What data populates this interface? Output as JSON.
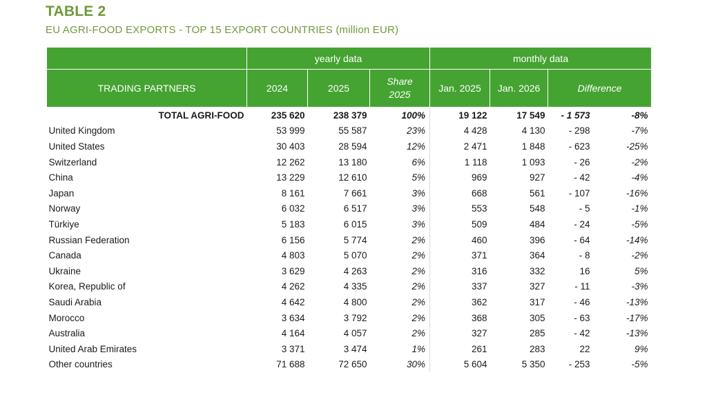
{
  "title": "TABLE 2",
  "subtitle": "EU AGRI-FOOD EXPORTS - TOP 15 EXPORT COUNTRIES (million EUR)",
  "headers": {
    "yearly": "yearly data",
    "monthly": "monthly data",
    "partners": "TRADING PARTNERS",
    "y2024": "2024",
    "y2025": "2025",
    "share_line1": "Share",
    "share_line2": "2025",
    "jan2025": "Jan. 2025",
    "jan2026": "Jan. 2026",
    "difference": "Difference"
  },
  "colors": {
    "header_green": "#45a331",
    "title_green": "#6f9a3a"
  },
  "rows": [
    {
      "name": "TOTAL AGRI-FOOD",
      "y2024": "235 620",
      "y2025": "238 379",
      "share": "100%",
      "jan2025": "19 122",
      "jan2026": "17 549",
      "diff": "- 1 573",
      "pct": "-8%"
    },
    {
      "name": "United Kingdom",
      "y2024": "53 999",
      "y2025": "55 587",
      "share": "23%",
      "jan2025": "4 428",
      "jan2026": "4 130",
      "diff": "- 298",
      "pct": "-7%"
    },
    {
      "name": "United States",
      "y2024": "30 403",
      "y2025": "28 594",
      "share": "12%",
      "jan2025": "2 471",
      "jan2026": "1 848",
      "diff": "- 623",
      "pct": "-25%"
    },
    {
      "name": "Switzerland",
      "y2024": "12 262",
      "y2025": "13 180",
      "share": "6%",
      "jan2025": "1 118",
      "jan2026": "1 093",
      "diff": "- 26",
      "pct": "-2%"
    },
    {
      "name": "China",
      "y2024": "13 229",
      "y2025": "12 610",
      "share": "5%",
      "jan2025": "969",
      "jan2026": "927",
      "diff": "- 42",
      "pct": "-4%"
    },
    {
      "name": "Japan",
      "y2024": "8 161",
      "y2025": "7 661",
      "share": "3%",
      "jan2025": "668",
      "jan2026": "561",
      "diff": "- 107",
      "pct": "-16%"
    },
    {
      "name": "Norway",
      "y2024": "6 032",
      "y2025": "6 517",
      "share": "3%",
      "jan2025": "553",
      "jan2026": "548",
      "diff": "- 5",
      "pct": "-1%"
    },
    {
      "name": "Türkiye",
      "y2024": "5 183",
      "y2025": "6 015",
      "share": "3%",
      "jan2025": "509",
      "jan2026": "484",
      "diff": "- 24",
      "pct": "-5%"
    },
    {
      "name": "Russian Federation",
      "y2024": "6 156",
      "y2025": "5 774",
      "share": "2%",
      "jan2025": "460",
      "jan2026": "396",
      "diff": "- 64",
      "pct": "-14%"
    },
    {
      "name": "Canada",
      "y2024": "4 803",
      "y2025": "5 070",
      "share": "2%",
      "jan2025": "371",
      "jan2026": "364",
      "diff": "- 8",
      "pct": "-2%"
    },
    {
      "name": "Ukraine",
      "y2024": "3 629",
      "y2025": "4 263",
      "share": "2%",
      "jan2025": "316",
      "jan2026": "332",
      "diff": "16",
      "pct": "5%"
    },
    {
      "name": "Korea, Republic of",
      "y2024": "4 262",
      "y2025": "4 335",
      "share": "2%",
      "jan2025": "337",
      "jan2026": "327",
      "diff": "- 11",
      "pct": "-3%"
    },
    {
      "name": "Saudi Arabia",
      "y2024": "4 642",
      "y2025": "4 800",
      "share": "2%",
      "jan2025": "362",
      "jan2026": "317",
      "diff": "- 46",
      "pct": "-13%"
    },
    {
      "name": "Morocco",
      "y2024": "3 634",
      "y2025": "3 792",
      "share": "2%",
      "jan2025": "368",
      "jan2026": "305",
      "diff": "- 63",
      "pct": "-17%"
    },
    {
      "name": "Australia",
      "y2024": "4 164",
      "y2025": "4 057",
      "share": "2%",
      "jan2025": "327",
      "jan2026": "285",
      "diff": "- 42",
      "pct": "-13%"
    },
    {
      "name": "United Arab Emirates",
      "y2024": "3 371",
      "y2025": "3 474",
      "share": "1%",
      "jan2025": "261",
      "jan2026": "283",
      "diff": "22",
      "pct": "9%"
    },
    {
      "name": "Other countries",
      "y2024": "71 688",
      "y2025": "72 650",
      "share": "30%",
      "jan2025": "5 604",
      "jan2026": "5 350",
      "diff": "- 253",
      "pct": "-5%"
    }
  ]
}
